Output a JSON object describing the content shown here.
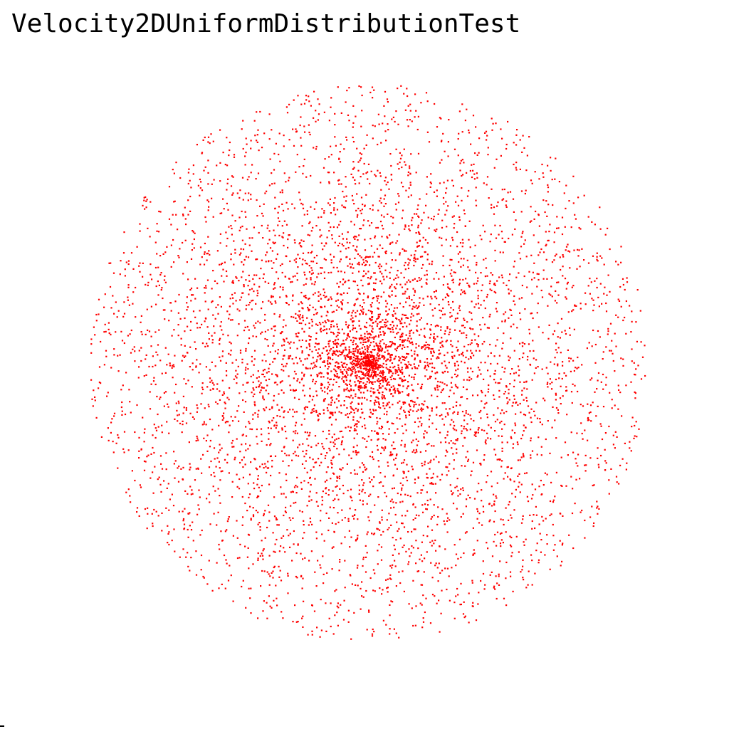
{
  "window": {
    "title": "Velocity2DUniformDistributionTest"
  },
  "visualization": {
    "point_color": "#ff0000",
    "background_color": "#ffffff",
    "point_count_approx": 6000,
    "radius_relative": 1.0,
    "distribution": "uniform over radius and angle (denser near center)"
  }
}
